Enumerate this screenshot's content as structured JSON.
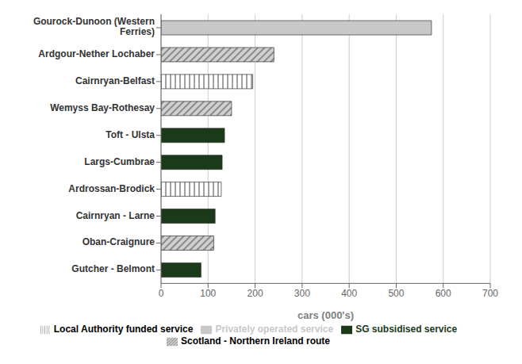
{
  "chart_data": {
    "type": "bar",
    "orientation": "horizontal",
    "stacked": true,
    "grid": true,
    "legend": "bottom",
    "xlabel": "cars (000's)",
    "xlim": [
      0,
      700
    ],
    "xticks": [
      0,
      100,
      200,
      300,
      400,
      500,
      600,
      700
    ],
    "categories": [
      "Gourock-Dunoon (Western\nFerries)",
      "Ardgour-Nether Lochaber",
      "Cairnryan-Belfast",
      "Wemyss Bay-Rothesay",
      "Toft - Ulsta",
      "Largs-Cumbrae",
      "Ardrossan-Brodick",
      "Cairnryan - Larne",
      "Oban-Craignure",
      "Gutcher - Belmont"
    ],
    "series": [
      {
        "name": "SG subsidised service",
        "color": "#1a3a1a",
        "values": [
          null,
          null,
          null,
          null,
          135,
          130,
          null,
          115,
          null,
          85
        ]
      },
      {
        "name": "Local Authority funded service",
        "color": "#ffffff",
        "values": [
          null,
          null,
          195,
          null,
          null,
          null,
          128,
          null,
          null,
          null
        ]
      },
      {
        "name": "Scotland - Northern Ireland route",
        "color": "#d0d0d0",
        "values": [
          null,
          240,
          null,
          150,
          null,
          null,
          null,
          null,
          112,
          null
        ]
      },
      {
        "name": "Privately operated service",
        "color": "#c8c8c8",
        "values": [
          575,
          null,
          null,
          null,
          null,
          null,
          null,
          null,
          null,
          null
        ]
      }
    ]
  }
}
